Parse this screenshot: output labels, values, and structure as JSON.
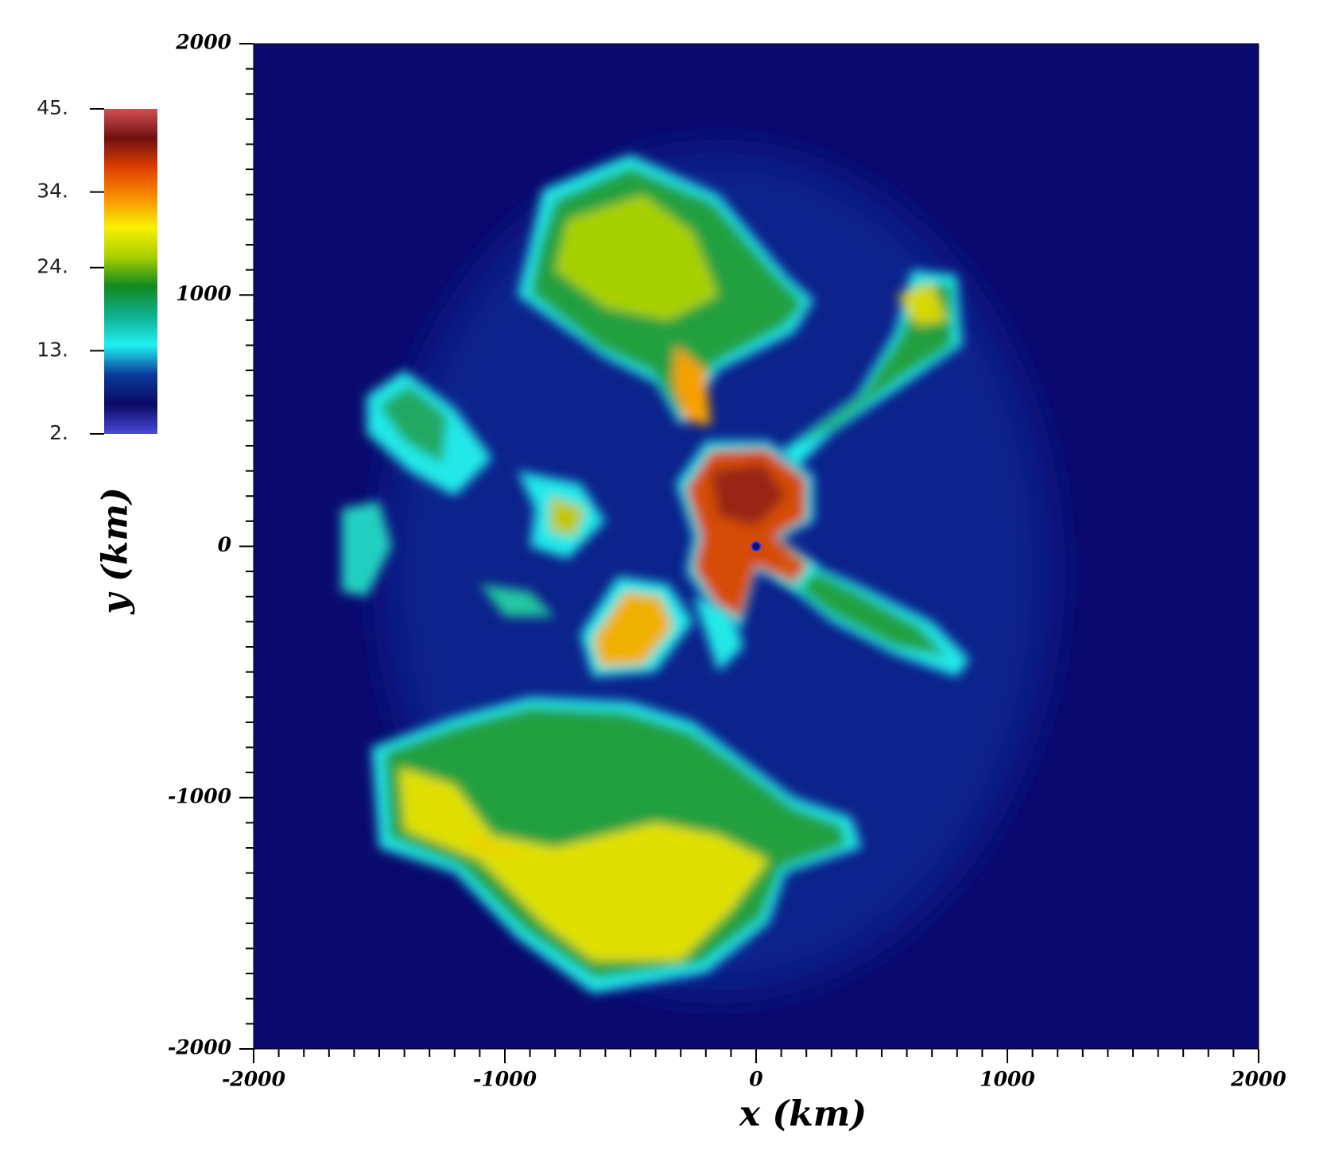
{
  "chart_data": {
    "type": "image",
    "xlabel": "x (km)",
    "ylabel": "y (km)",
    "xlim": [
      -2000,
      2000
    ],
    "ylim": [
      -2000,
      2000
    ],
    "xticks": [
      -2000,
      -1000,
      0,
      1000,
      2000
    ],
    "yticks": [
      -2000,
      -1000,
      0,
      1000,
      2000
    ],
    "colorbar": {
      "lim": [
        2,
        45
      ],
      "ticks": [
        {
          "value": 2,
          "label": "2."
        },
        {
          "value": 13,
          "label": "13."
        },
        {
          "value": 24,
          "label": "24."
        },
        {
          "value": 34,
          "label": "34."
        },
        {
          "value": 45,
          "label": "45."
        }
      ],
      "colormap": [
        "#4a4ad8",
        "#0a0a66",
        "#0a3a9a",
        "#20f0f0",
        "#10b090",
        "#108a20",
        "#a8d000",
        "#f8f000",
        "#f89000",
        "#e04000",
        "#701010",
        "#d05050"
      ]
    }
  }
}
